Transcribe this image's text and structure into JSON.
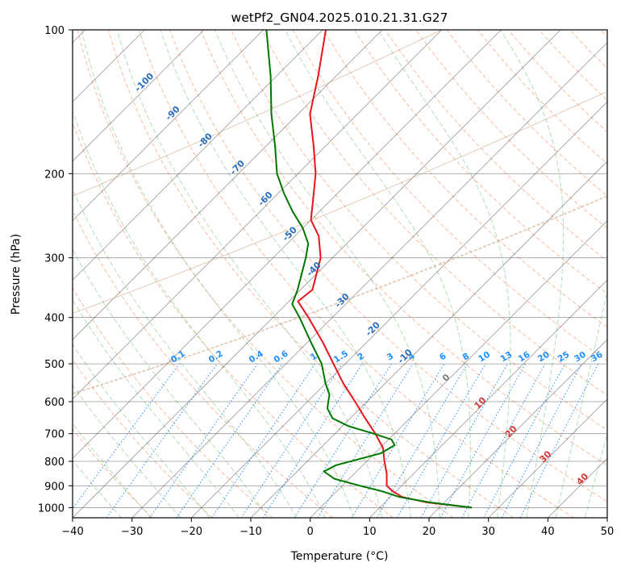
{
  "chart_data": {
    "type": "line",
    "title": "wetPf2_GN04.2025.010.21.31.G27",
    "xlabel": "Temperature (°C)",
    "ylabel": "Pressure (hPa)",
    "xlim": [
      -40,
      50
    ],
    "ylim": [
      1050,
      100
    ],
    "y_scale": "log",
    "grid": true,
    "x_ticks": [
      -40,
      -30,
      -20,
      -10,
      0,
      10,
      20,
      30,
      40,
      50
    ],
    "y_ticks": [
      100,
      200,
      300,
      400,
      500,
      600,
      700,
      800,
      900,
      1000
    ],
    "series": [
      {
        "role": "temperature",
        "color": "#e8141a",
        "points": [
          {
            "p": 1000,
            "t": 25.5
          },
          {
            "p": 975,
            "t": 17.0
          },
          {
            "p": 950,
            "t": 12.0
          },
          {
            "p": 925,
            "t": 9.5
          },
          {
            "p": 900,
            "t": 7.5
          },
          {
            "p": 875,
            "t": 6.5
          },
          {
            "p": 850,
            "t": 5.5
          },
          {
            "p": 800,
            "t": 3.0
          },
          {
            "p": 750,
            "t": 0.5
          },
          {
            "p": 700,
            "t": -3.2
          },
          {
            "p": 650,
            "t": -7.5
          },
          {
            "p": 600,
            "t": -12.0
          },
          {
            "p": 550,
            "t": -17.0
          },
          {
            "p": 500,
            "t": -22.0
          },
          {
            "p": 450,
            "t": -27.5
          },
          {
            "p": 400,
            "t": -34.0
          },
          {
            "p": 370,
            "t": -38.5
          },
          {
            "p": 350,
            "t": -38.0
          },
          {
            "p": 300,
            "t": -42.0
          },
          {
            "p": 270,
            "t": -46.0
          },
          {
            "p": 250,
            "t": -50.0
          },
          {
            "p": 220,
            "t": -54.0
          },
          {
            "p": 200,
            "t": -57.0
          },
          {
            "p": 175,
            "t": -62.0
          },
          {
            "p": 150,
            "t": -68.0
          },
          {
            "p": 125,
            "t": -73.0
          },
          {
            "p": 100,
            "t": -79.5
          }
        ]
      },
      {
        "role": "dewpoint",
        "color": "#007800",
        "points": [
          {
            "p": 1000,
            "t": 25.5
          },
          {
            "p": 975,
            "t": 17.5
          },
          {
            "p": 950,
            "t": 11.5
          },
          {
            "p": 925,
            "t": 7.8
          },
          {
            "p": 900,
            "t": 3.0
          },
          {
            "p": 870,
            "t": -2.5
          },
          {
            "p": 840,
            "t": -5.5
          },
          {
            "p": 815,
            "t": -4.5
          },
          {
            "p": 790,
            "t": -1.5
          },
          {
            "p": 770,
            "t": 1.0
          },
          {
            "p": 740,
            "t": 2.0
          },
          {
            "p": 720,
            "t": 0.5
          },
          {
            "p": 700,
            "t": -3.5
          },
          {
            "p": 675,
            "t": -9.0
          },
          {
            "p": 650,
            "t": -13.0
          },
          {
            "p": 620,
            "t": -15.5
          },
          {
            "p": 600,
            "t": -16.5
          },
          {
            "p": 580,
            "t": -17.5
          },
          {
            "p": 550,
            "t": -20.0
          },
          {
            "p": 500,
            "t": -24.0
          },
          {
            "p": 450,
            "t": -29.5
          },
          {
            "p": 400,
            "t": -35.5
          },
          {
            "p": 375,
            "t": -39.0
          },
          {
            "p": 350,
            "t": -40.5
          },
          {
            "p": 300,
            "t": -44.5
          },
          {
            "p": 280,
            "t": -46.5
          },
          {
            "p": 260,
            "t": -50.0
          },
          {
            "p": 240,
            "t": -54.5
          },
          {
            "p": 220,
            "t": -59.0
          },
          {
            "p": 200,
            "t": -63.5
          },
          {
            "p": 175,
            "t": -68.5
          },
          {
            "p": 150,
            "t": -74.5
          },
          {
            "p": 125,
            "t": -81.0
          },
          {
            "p": 100,
            "t": -89.5
          }
        ]
      }
    ],
    "mixing_ratio_lines": {
      "color": "#1e90ff",
      "values": [
        0.1,
        0.2,
        0.4,
        0.6,
        1,
        1.5,
        2,
        3,
        4,
        6,
        8,
        10,
        13,
        16,
        20,
        25,
        30,
        36
      ],
      "labels": [
        "0.1",
        "0.2",
        "0.4",
        "0.6",
        "1",
        "1.5",
        "2",
        "3",
        "4",
        "6",
        "8",
        "10",
        "13",
        "16",
        "20",
        "25",
        "30",
        "36"
      ],
      "label_pressure": 500
    },
    "temperature_labels": {
      "blue": {
        "color": "#2a6fbf",
        "values": [
          -100,
          -90,
          -80,
          -70,
          -60,
          -50,
          -40,
          -30,
          -20,
          -10
        ],
        "labels": [
          "-100",
          "-90",
          "-80",
          "-70",
          "-60",
          "-50",
          "-40",
          "-30",
          "-20",
          "-10"
        ]
      },
      "red": {
        "color": "#d43a3a",
        "values": [
          10,
          20,
          30,
          40
        ],
        "labels": [
          "10",
          "20",
          "30",
          "40"
        ]
      },
      "zero": {
        "value": 0,
        "label": "0",
        "color": "#808080"
      }
    },
    "colors": {
      "dry_adiabat": "#f4a582",
      "moist_adiabat": "#8fc98f",
      "isotherm": "#555555",
      "isobar": "#555555",
      "ccl_curve": "#c8a080"
    }
  }
}
